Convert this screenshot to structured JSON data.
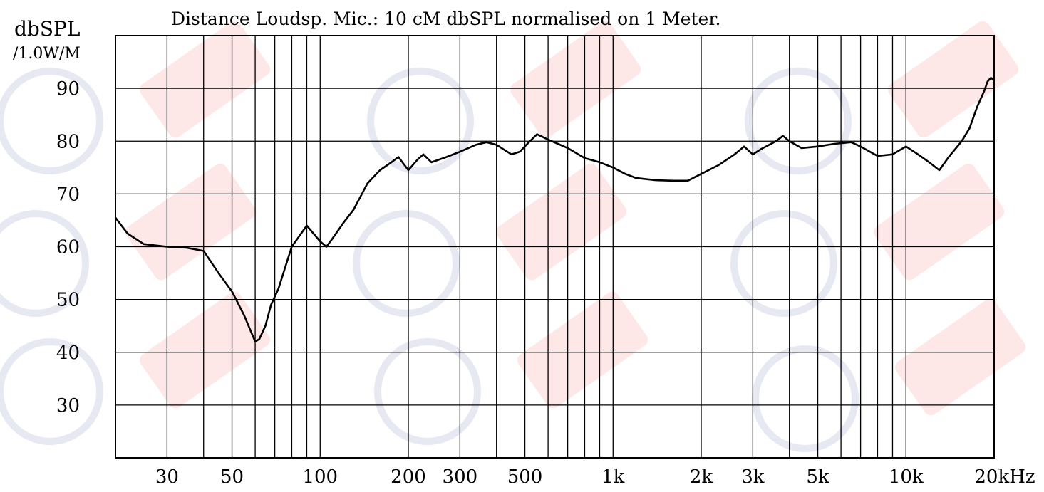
{
  "chart_data": {
    "type": "line",
    "title": "Distance Loudsp. Mic.: 10 cM dbSPL normalised on 1 Meter.",
    "ylabel_line1": "dbSPL",
    "ylabel_line2": "/1.0W/M",
    "xscale": "log",
    "xlim": [
      20,
      20000
    ],
    "ylim": [
      20,
      100
    ],
    "grid": true,
    "x_ticks": [
      {
        "value": 30,
        "label": "30"
      },
      {
        "value": 50,
        "label": "50"
      },
      {
        "value": 100,
        "label": "100"
      },
      {
        "value": 200,
        "label": "200"
      },
      {
        "value": 300,
        "label": "300"
      },
      {
        "value": 500,
        "label": "500"
      },
      {
        "value": 1000,
        "label": "1k"
      },
      {
        "value": 2000,
        "label": "2k"
      },
      {
        "value": 3000,
        "label": "3k"
      },
      {
        "value": 5000,
        "label": "5k"
      },
      {
        "value": 10000,
        "label": "10k"
      },
      {
        "value": 20000,
        "label": "20kHz"
      }
    ],
    "y_ticks": [
      {
        "value": 30,
        "label": "30"
      },
      {
        "value": 40,
        "label": "40"
      },
      {
        "value": 50,
        "label": "50"
      },
      {
        "value": 60,
        "label": "60"
      },
      {
        "value": 70,
        "label": "70"
      },
      {
        "value": 80,
        "label": "80"
      },
      {
        "value": 90,
        "label": "90"
      }
    ],
    "series": [
      {
        "color": "#000000",
        "points": [
          [
            20,
            65.5
          ],
          [
            22,
            62.5
          ],
          [
            25,
            60.5
          ],
          [
            30,
            60
          ],
          [
            35,
            59.8
          ],
          [
            40,
            59.2
          ],
          [
            45,
            55
          ],
          [
            50,
            51.5
          ],
          [
            55,
            47
          ],
          [
            60,
            42
          ],
          [
            62,
            42.5
          ],
          [
            65,
            45
          ],
          [
            68,
            49
          ],
          [
            72,
            52
          ],
          [
            80,
            60
          ],
          [
            90,
            64
          ],
          [
            100,
            61
          ],
          [
            105,
            60
          ],
          [
            110,
            61.5
          ],
          [
            120,
            64.5
          ],
          [
            130,
            67
          ],
          [
            145,
            72
          ],
          [
            160,
            74.5
          ],
          [
            175,
            76
          ],
          [
            185,
            77
          ],
          [
            200,
            74.5
          ],
          [
            215,
            76.5
          ],
          [
            225,
            77.5
          ],
          [
            240,
            76
          ],
          [
            270,
            77
          ],
          [
            300,
            78
          ],
          [
            340,
            79.3
          ],
          [
            370,
            79.8
          ],
          [
            400,
            79.3
          ],
          [
            450,
            77.5
          ],
          [
            480,
            78
          ],
          [
            520,
            80
          ],
          [
            550,
            81.3
          ],
          [
            600,
            80.3
          ],
          [
            700,
            78.7
          ],
          [
            800,
            76.8
          ],
          [
            900,
            76
          ],
          [
            1000,
            75
          ],
          [
            1100,
            73.8
          ],
          [
            1200,
            73
          ],
          [
            1400,
            72.6
          ],
          [
            1600,
            72.5
          ],
          [
            1800,
            72.5
          ],
          [
            2000,
            73.8
          ],
          [
            2300,
            75.5
          ],
          [
            2600,
            77.5
          ],
          [
            2800,
            79
          ],
          [
            3000,
            77.5
          ],
          [
            3200,
            78.5
          ],
          [
            3600,
            80
          ],
          [
            3800,
            81
          ],
          [
            4000,
            80
          ],
          [
            4400,
            78.7
          ],
          [
            5000,
            79
          ],
          [
            5700,
            79.5
          ],
          [
            6500,
            79.8
          ],
          [
            7000,
            79
          ],
          [
            8000,
            77.2
          ],
          [
            9000,
            77.5
          ],
          [
            10000,
            79
          ],
          [
            11000,
            77.5
          ],
          [
            12000,
            76
          ],
          [
            13000,
            74.5
          ],
          [
            14000,
            77
          ],
          [
            15500,
            80
          ],
          [
            16500,
            82.5
          ],
          [
            17500,
            86.5
          ],
          [
            18500,
            89.5
          ],
          [
            19000,
            91.3
          ],
          [
            19500,
            92
          ],
          [
            20000,
            91.5
          ]
        ]
      }
    ]
  }
}
